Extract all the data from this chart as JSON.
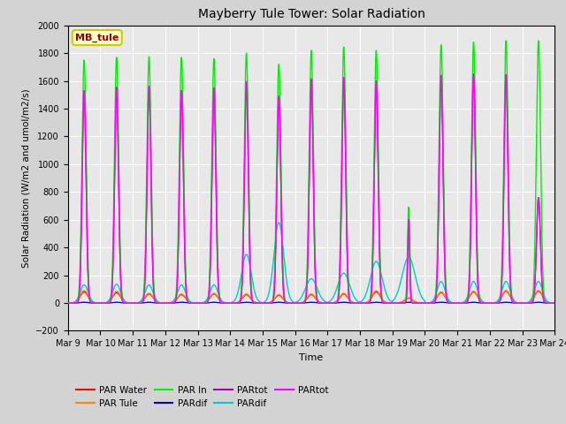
{
  "title": "Mayberry Tule Tower: Solar Radiation",
  "ylabel": "Solar Radiation (W/m2 and umol/m2/s)",
  "xlabel": "Time",
  "ylim": [
    -200,
    2000
  ],
  "yticks": [
    -200,
    0,
    200,
    400,
    600,
    800,
    1000,
    1200,
    1400,
    1600,
    1800,
    2000
  ],
  "background_color": "#d3d3d3",
  "plot_bg_color": "#e8e8e8",
  "legend_box_label": "MB_tule",
  "legend_box_bg": "#ffffcc",
  "legend_box_border": "#cccc00",
  "legend_box_text": "#990000",
  "series": [
    {
      "label": "PAR Water",
      "color": "#ff0000",
      "lw": 1.0
    },
    {
      "label": "PAR Tule",
      "color": "#ff8800",
      "lw": 1.0
    },
    {
      "label": "PAR In",
      "color": "#00ee00",
      "lw": 1.0
    },
    {
      "label": "PARdif",
      "color": "#0000cc",
      "lw": 1.0
    },
    {
      "label": "PARtot",
      "color": "#aa00aa",
      "lw": 1.0
    },
    {
      "label": "PARdif",
      "color": "#00cccc",
      "lw": 1.0
    },
    {
      "label": "PARtot",
      "color": "#ff00ff",
      "lw": 1.0
    }
  ],
  "xtick_labels": [
    "Mar 9",
    "Mar 10",
    "Mar 11",
    "Mar 12",
    "Mar 13",
    "Mar 14",
    "Mar 15",
    "Mar 16",
    "Mar 17",
    "Mar 18",
    "Mar 19",
    "Mar 20",
    "Mar 21",
    "Mar 22",
    "Mar 23",
    "Mar 24"
  ],
  "par_in_peaks": [
    1750,
    1770,
    1775,
    1770,
    1760,
    1800,
    1720,
    1820,
    1845,
    1820,
    690,
    1860,
    1880,
    1890,
    1890
  ],
  "par_tot_peaks": [
    1530,
    1555,
    1560,
    1530,
    1550,
    1595,
    1490,
    1615,
    1625,
    1600,
    600,
    1640,
    1650,
    1645,
    760
  ],
  "par_dif2_peaks": [
    130,
    135,
    130,
    130,
    130,
    350,
    580,
    175,
    215,
    300,
    330,
    155,
    155,
    155,
    155
  ],
  "par_water_peaks": [
    80,
    75,
    65,
    60,
    65,
    60,
    55,
    60,
    65,
    80,
    35,
    75,
    80,
    85,
    85
  ],
  "par_tule_peaks": [
    90,
    85,
    70,
    65,
    70,
    65,
    60,
    65,
    70,
    88,
    38,
    80,
    85,
    90,
    90
  ],
  "par_dif1_peaks": [
    5,
    5,
    5,
    5,
    5,
    5,
    5,
    5,
    5,
    5,
    5,
    5,
    5,
    5,
    5
  ],
  "par_ptot_peaks": [
    1530,
    1555,
    1560,
    1530,
    1550,
    1595,
    1490,
    1615,
    1625,
    1600,
    600,
    1640,
    1650,
    1645,
    760
  ]
}
